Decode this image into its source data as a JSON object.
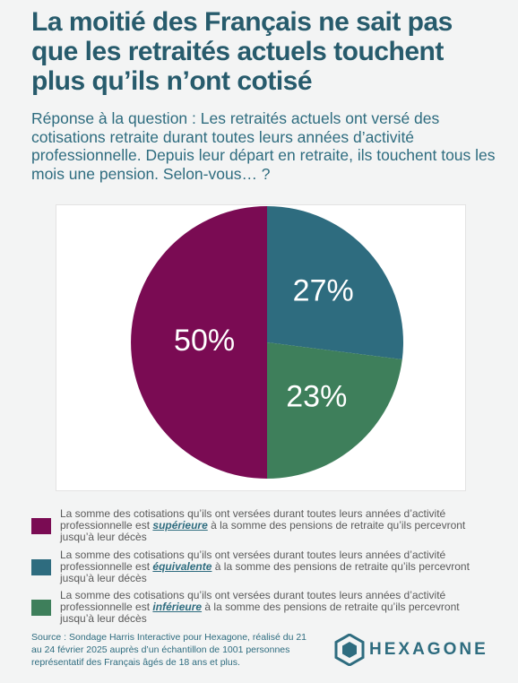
{
  "chart_data": {
    "type": "pie",
    "title": "La moitié des Français ne sait pas que les retraités actuels touchent plus qu’ils n’ont cotisé",
    "subtitle": "Réponse à la question : Les retraités actuels ont versé des cotisations retraite durant toutes leurs années d’activité professionnelle. Depuis leur départ en retraite, ils touchent tous les mois une pension. Selon-vous… ?",
    "categories": [
      "La somme des cotisations qu’ils ont versées durant toutes leurs années d’activité professionnelle est supérieure à la somme des pensions de retraite qu’ils percevront jusqu’à leur décès",
      "La somme des cotisations qu’ils ont versées durant toutes leurs années d’activité professionnelle est équivalente à la somme des pensions de retraite qu’ils percevront jusqu’à leur décès",
      "La somme des cotisations qu’ils ont versées durant toutes leurs années d’activité professionnelle est inférieure à la somme des pensions de retraite qu’ils percevront jusqu’à leur décès"
    ],
    "values": [
      50,
      27,
      23
    ],
    "value_labels": [
      "50%",
      "27%",
      "23%"
    ],
    "colors": [
      "#7a0b53",
      "#2e6c7f",
      "#3e7f5b"
    ],
    "source": "Source : Sondage Harris Interactive pour Hexagone, réalisé du 21 au 24 février 2025 auprès d’un échantillon de 1001 personnes représentatif des Français âgés de 18 ans et plus.",
    "logo": "HEXAGONE"
  }
}
